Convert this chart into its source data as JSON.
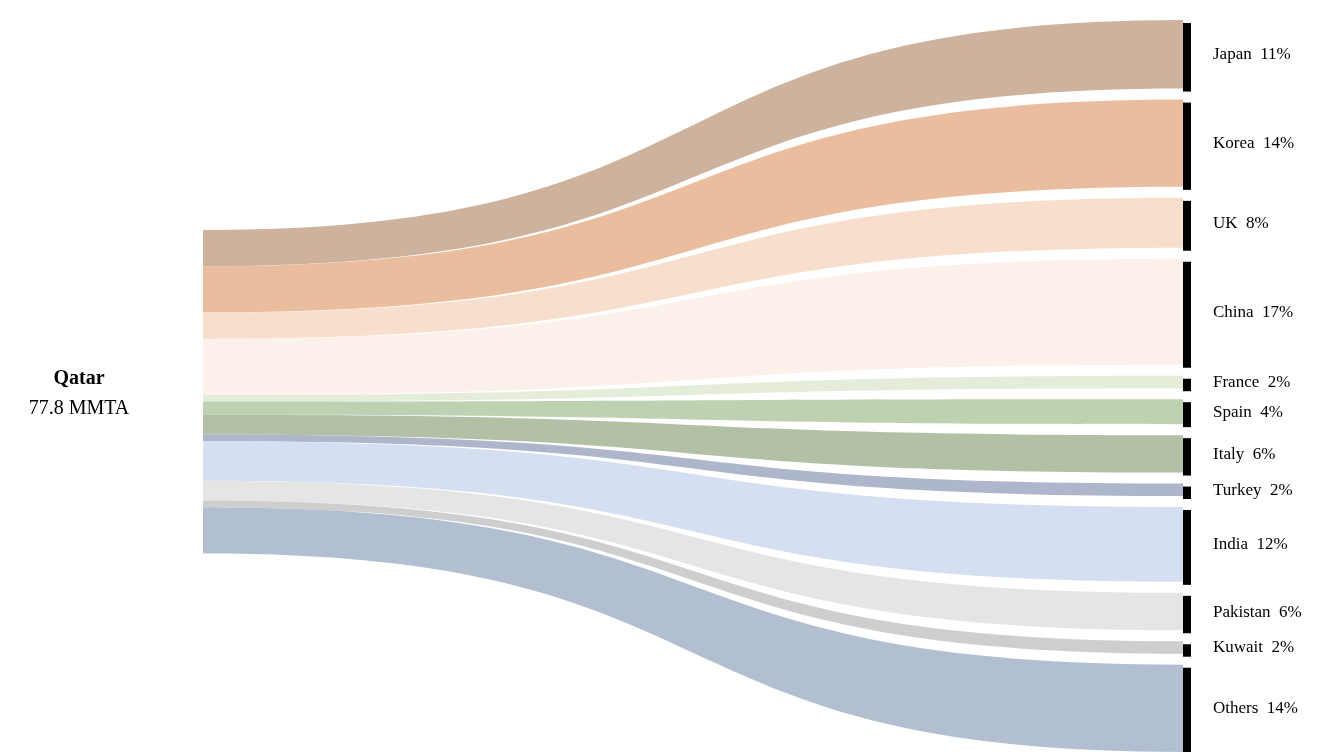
{
  "chart_data": {
    "type": "other",
    "title": "Qatar",
    "annotations": [
      "77.8 MMTA"
    ],
    "categories": [
      "Japan",
      "Korea",
      "UK",
      "China",
      "France",
      "Spain",
      "Italy",
      "Turkey",
      "India",
      "Pakistan",
      "Kuwait",
      "Others"
    ],
    "values": [
      11,
      14,
      8,
      17,
      2,
      4,
      6,
      2,
      12,
      6,
      2,
      14
    ],
    "value_labels": [
      "11%",
      "14%",
      "8%",
      "17%",
      "2%",
      "4%",
      "6%",
      "2%",
      "12%",
      "6%",
      "2%",
      "14%"
    ],
    "colors": [
      "#c4a48c",
      "#e6b28e",
      "#f7d9c4",
      "#fbefe6",
      "#dfead4",
      "#b3c9a2",
      "#a5b597",
      "#a0a9c2",
      "#ccd9ee",
      "#e0e0e0",
      "#c6c6c6",
      "#a3b4c9"
    ]
  }
}
